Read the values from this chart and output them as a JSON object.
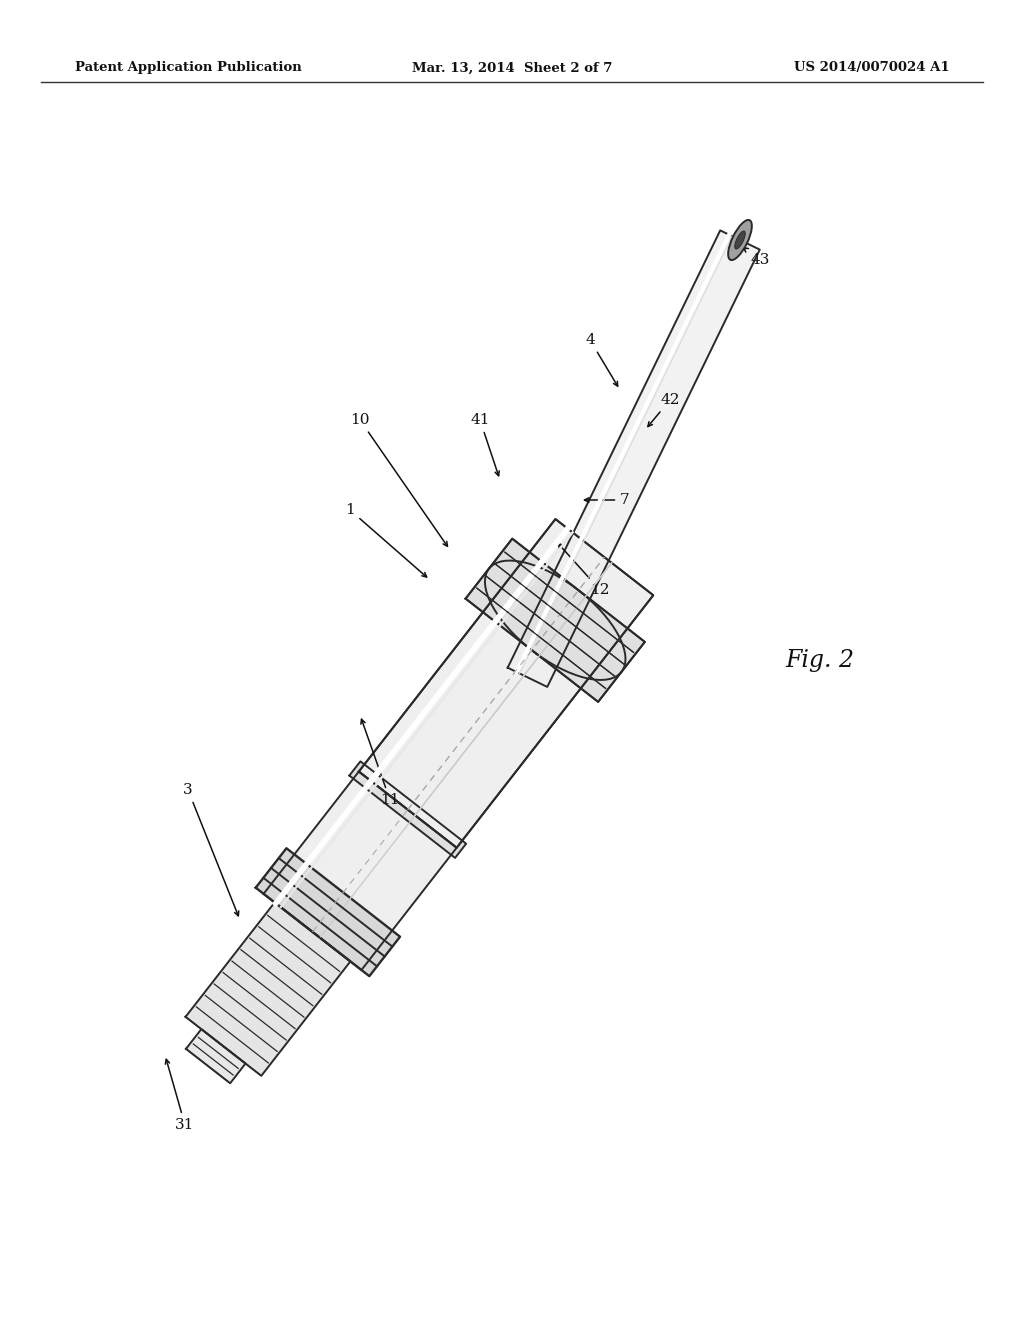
{
  "bg_color": "#ffffff",
  "header_left": "Patent Application Publication",
  "header_mid": "Mar. 13, 2014  Sheet 2 of 7",
  "header_right": "US 2014/0070024 A1",
  "fig_label": "Fig. 2",
  "line_color": "#2a2a2a",
  "body_fill": "#efefef",
  "thread_fill": "#d8d8d8",
  "fitting_fill": "#e0e0e0",
  "tube_fill": "#f2f2f2",
  "shadow_fill": "#c8c8c8"
}
